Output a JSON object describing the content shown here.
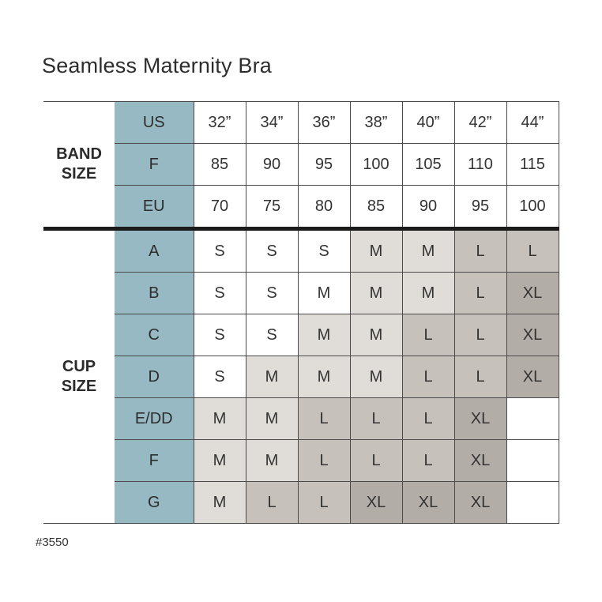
{
  "title": "Seamless Maternity Bra",
  "style_number": "#3550",
  "colors": {
    "header_blue": "#97b9c4",
    "shade_white": "#ffffff",
    "shade_light": "#e0dcd8",
    "shade_medium": "#c7c1bb",
    "shade_dark": "#b3ada7",
    "border": "#4a4a4a",
    "section_divider": "#1b1b1b",
    "text": "#333333"
  },
  "band_section": {
    "label": "BAND SIZE",
    "rows": [
      {
        "header": "US",
        "values": [
          "32”",
          "34”",
          "36”",
          "38”",
          "40”",
          "42”",
          "44”"
        ]
      },
      {
        "header": "F",
        "values": [
          "85",
          "90",
          "95",
          "100",
          "105",
          "110",
          "115"
        ]
      },
      {
        "header": "EU",
        "values": [
          "70",
          "75",
          "80",
          "85",
          "90",
          "95",
          "100"
        ]
      }
    ]
  },
  "cup_section": {
    "label": "CUP SIZE",
    "rows": [
      {
        "header": "A",
        "cells": [
          {
            "v": "S",
            "shade": "white"
          },
          {
            "v": "S",
            "shade": "white"
          },
          {
            "v": "S",
            "shade": "white"
          },
          {
            "v": "M",
            "shade": "light"
          },
          {
            "v": "M",
            "shade": "light"
          },
          {
            "v": "L",
            "shade": "medium"
          },
          {
            "v": "L",
            "shade": "medium"
          }
        ]
      },
      {
        "header": "B",
        "cells": [
          {
            "v": "S",
            "shade": "white"
          },
          {
            "v": "S",
            "shade": "white"
          },
          {
            "v": "M",
            "shade": "white"
          },
          {
            "v": "M",
            "shade": "light"
          },
          {
            "v": "M",
            "shade": "light"
          },
          {
            "v": "L",
            "shade": "medium"
          },
          {
            "v": "XL",
            "shade": "dark"
          }
        ]
      },
      {
        "header": "C",
        "cells": [
          {
            "v": "S",
            "shade": "white"
          },
          {
            "v": "S",
            "shade": "white"
          },
          {
            "v": "M",
            "shade": "light"
          },
          {
            "v": "M",
            "shade": "light"
          },
          {
            "v": "L",
            "shade": "medium"
          },
          {
            "v": "L",
            "shade": "medium"
          },
          {
            "v": "XL",
            "shade": "dark"
          }
        ]
      },
      {
        "header": "D",
        "cells": [
          {
            "v": "S",
            "shade": "white"
          },
          {
            "v": "M",
            "shade": "light"
          },
          {
            "v": "M",
            "shade": "light"
          },
          {
            "v": "M",
            "shade": "light"
          },
          {
            "v": "L",
            "shade": "medium"
          },
          {
            "v": "L",
            "shade": "medium"
          },
          {
            "v": "XL",
            "shade": "dark"
          }
        ]
      },
      {
        "header": "E/DD",
        "cells": [
          {
            "v": "M",
            "shade": "light"
          },
          {
            "v": "M",
            "shade": "light"
          },
          {
            "v": "L",
            "shade": "medium"
          },
          {
            "v": "L",
            "shade": "medium"
          },
          {
            "v": "L",
            "shade": "medium"
          },
          {
            "v": "XL",
            "shade": "dark"
          },
          {
            "v": "",
            "shade": "white"
          }
        ]
      },
      {
        "header": "F",
        "cells": [
          {
            "v": "M",
            "shade": "light"
          },
          {
            "v": "M",
            "shade": "light"
          },
          {
            "v": "L",
            "shade": "medium"
          },
          {
            "v": "L",
            "shade": "medium"
          },
          {
            "v": "L",
            "shade": "medium"
          },
          {
            "v": "XL",
            "shade": "dark"
          },
          {
            "v": "",
            "shade": "white"
          }
        ]
      },
      {
        "header": "G",
        "cells": [
          {
            "v": "M",
            "shade": "light"
          },
          {
            "v": "L",
            "shade": "medium"
          },
          {
            "v": "L",
            "shade": "medium"
          },
          {
            "v": "XL",
            "shade": "dark"
          },
          {
            "v": "XL",
            "shade": "dark"
          },
          {
            "v": "XL",
            "shade": "dark"
          },
          {
            "v": "",
            "shade": "white"
          }
        ]
      }
    ]
  },
  "chart_data": {
    "type": "table",
    "title": "Seamless Maternity Bra",
    "columns": [
      "32”",
      "34”",
      "36”",
      "38”",
      "40”",
      "42”",
      "44”"
    ],
    "band_size": {
      "US": [
        "32”",
        "34”",
        "36”",
        "38”",
        "40”",
        "42”",
        "44”"
      ],
      "F": [
        85,
        90,
        95,
        100,
        105,
        110,
        115
      ],
      "EU": [
        70,
        75,
        80,
        85,
        90,
        95,
        100
      ]
    },
    "cup_size_recommendation": {
      "A": [
        "S",
        "S",
        "S",
        "M",
        "M",
        "L",
        "L"
      ],
      "B": [
        "S",
        "S",
        "M",
        "M",
        "M",
        "L",
        "XL"
      ],
      "C": [
        "S",
        "S",
        "M",
        "M",
        "L",
        "L",
        "XL"
      ],
      "D": [
        "S",
        "M",
        "M",
        "M",
        "L",
        "L",
        "XL"
      ],
      "E/DD": [
        "M",
        "M",
        "L",
        "L",
        "L",
        "XL",
        ""
      ],
      "F": [
        "M",
        "M",
        "L",
        "L",
        "L",
        "XL",
        ""
      ],
      "G": [
        "M",
        "L",
        "L",
        "XL",
        "XL",
        "XL",
        ""
      ]
    }
  }
}
